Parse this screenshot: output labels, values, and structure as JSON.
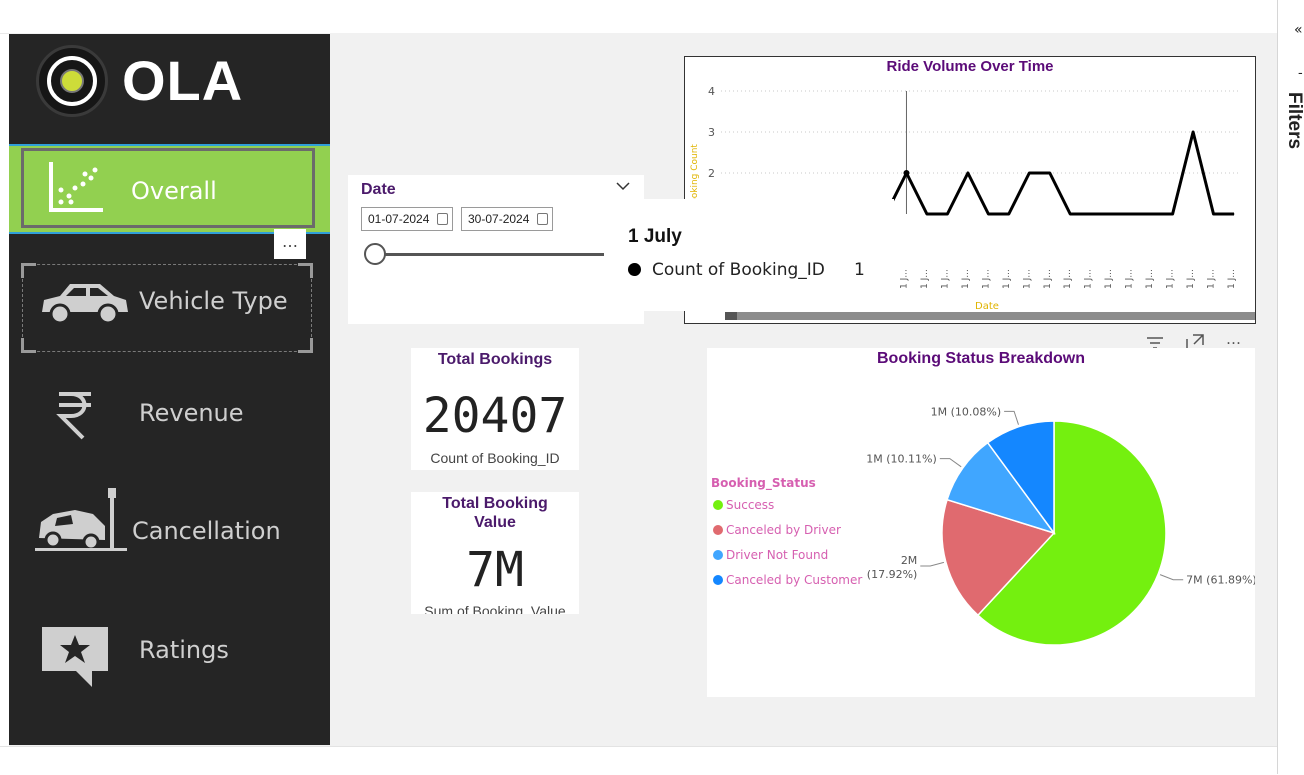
{
  "brand": {
    "name": "OLA"
  },
  "nav": [
    {
      "label": "Overall",
      "icon": "scatter-chart-icon",
      "active": true
    },
    {
      "label": "Vehicle Type",
      "icon": "car-icon"
    },
    {
      "label": "Revenue",
      "icon": "rupee-icon"
    },
    {
      "label": "Cancellation",
      "icon": "car-crash-icon"
    },
    {
      "label": "Ratings",
      "icon": "star-chat-icon"
    }
  ],
  "more_label": "…",
  "filters_pane": {
    "label": "Filters",
    "collapse_icon": "«",
    "dash": "-"
  },
  "date_slicer": {
    "title": "Date",
    "start": "01-07-2024",
    "end": "30-07-2024"
  },
  "tooltip": {
    "title": "1 July",
    "label": "Count of Booking_ID",
    "value": "1"
  },
  "kpis": [
    {
      "title": "Total Bookings",
      "value": "20407",
      "subtitle": "Count of Booking_ID"
    },
    {
      "title": "Total Booking Value",
      "value": "7M",
      "subtitle": "Sum of Booking_Value"
    }
  ],
  "chart_data": [
    {
      "type": "line",
      "title": "Ride Volume Over Time",
      "xlabel": "Date",
      "ylabel": "Booking Count",
      "yticks": [
        2,
        3,
        4
      ],
      "ylim": [
        0,
        4
      ],
      "x_tick_label": "1 J...",
      "x": [
        1,
        2,
        3,
        4,
        5,
        6,
        7,
        8,
        9,
        10,
        11,
        12,
        13,
        14,
        15,
        16,
        17,
        18
      ],
      "values": [
        1,
        2,
        1,
        1,
        2,
        1,
        1,
        2,
        2,
        1,
        1,
        1,
        1,
        1,
        1,
        3,
        1,
        1
      ],
      "hover_index": 2,
      "gridlines": true,
      "colors": {
        "line": "#000000",
        "title": "#5b0b78",
        "axis_label": "#e0b400"
      }
    },
    {
      "type": "pie",
      "title": "Booking Status Breakdown",
      "legend_title": "Booking_Status",
      "legend_placement": "left",
      "series": [
        {
          "name": "Success",
          "value_label": "7M (61.89%)",
          "percent": 61.89,
          "color": "#74f00f"
        },
        {
          "name": "Canceled by Driver",
          "value_label": "2M (17.92%)",
          "percent": 17.92,
          "color": "#e06a6f"
        },
        {
          "name": "Driver Not Found",
          "value_label": "1M (10.11%)",
          "percent": 10.11,
          "color": "#40a6ff"
        },
        {
          "name": "Canceled by Customer",
          "value_label": "1M (10.08%)",
          "percent": 10.08,
          "color": "#1487ff"
        }
      ]
    }
  ]
}
